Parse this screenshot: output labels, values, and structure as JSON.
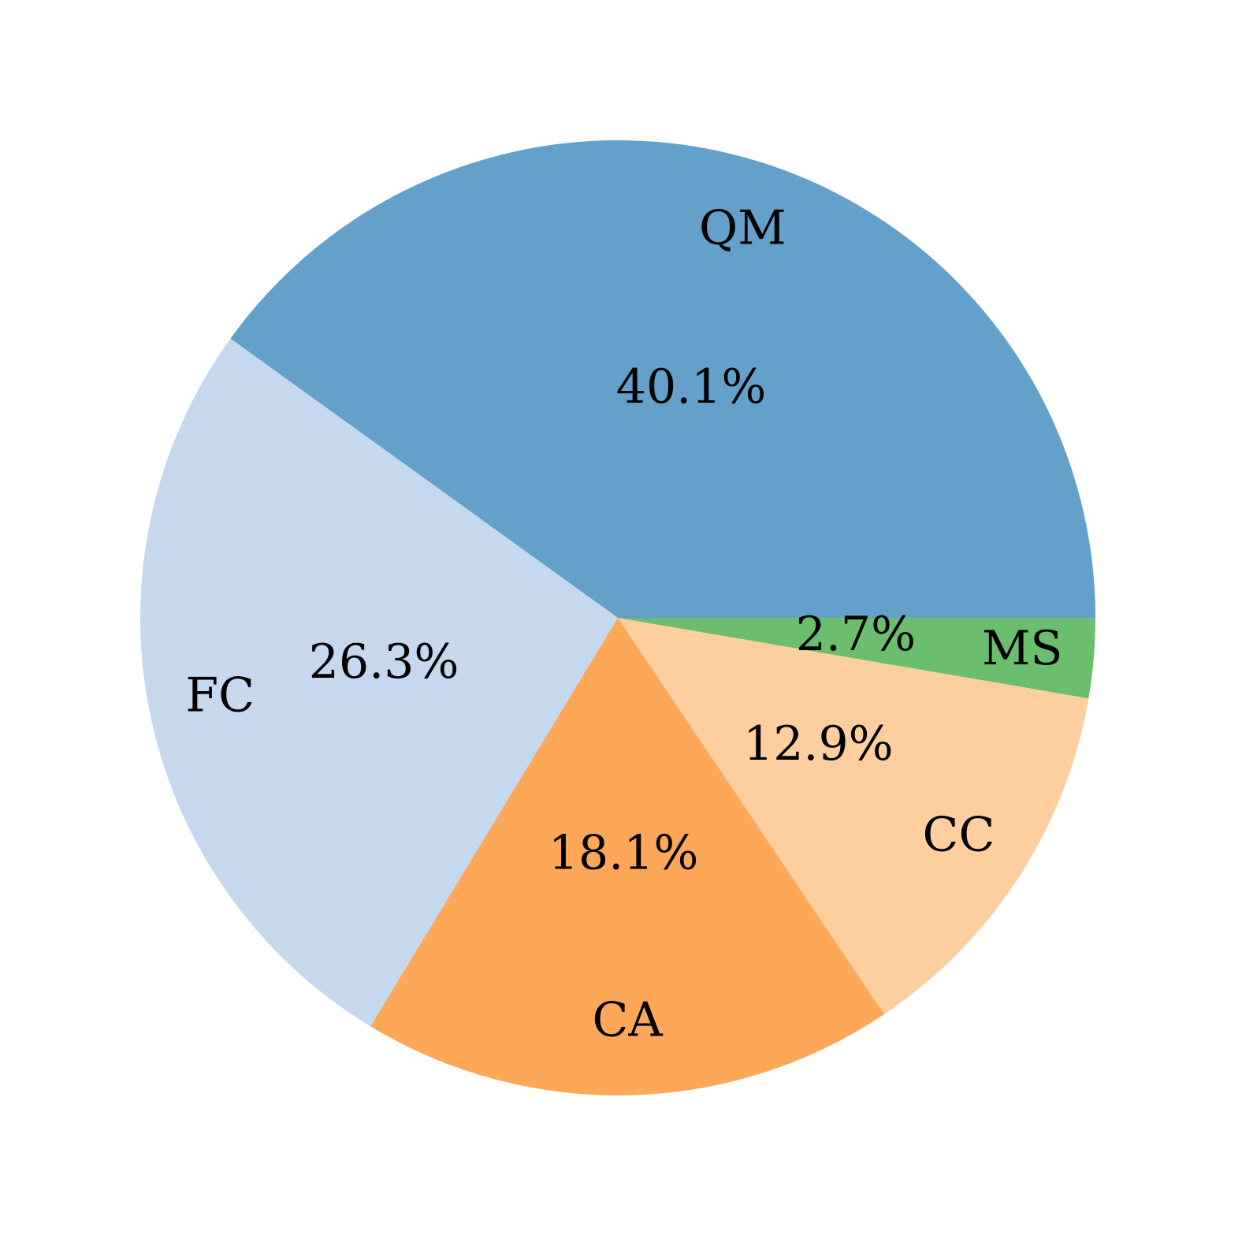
{
  "chart_data": {
    "type": "pie",
    "categories": [
      "QM",
      "FC",
      "CA",
      "CC",
      "MS"
    ],
    "values": [
      40.1,
      26.3,
      18.1,
      12.9,
      2.7
    ],
    "value_labels": [
      "40.1%",
      "26.3%",
      "18.1%",
      "12.9%",
      "2.7%"
    ],
    "colors": [
      "#63a0ca",
      "#c5d8ee",
      "#fda758",
      "#fdcf9f",
      "#6bbe6d"
    ]
  }
}
